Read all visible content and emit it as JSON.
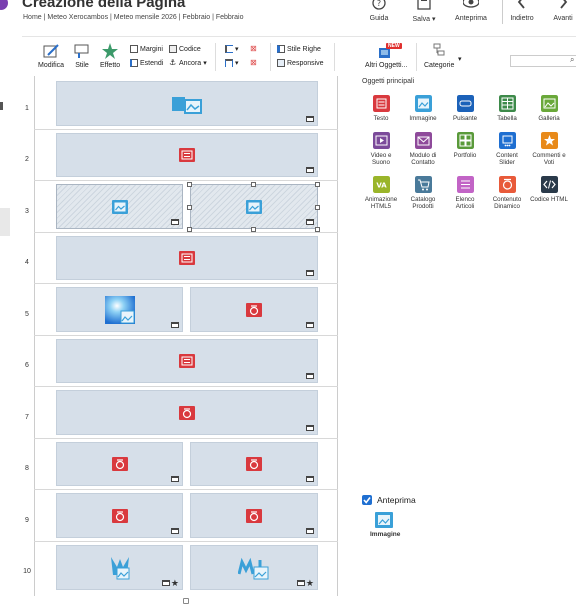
{
  "header": {
    "title": "Creazione della Pagina",
    "breadcrumb": "Home | Meteo Xerocambos | Meteo mensile 2026 | Febbraio | Febbraio",
    "buttons": {
      "guide": "Guida",
      "save": "Salva ▾",
      "preview": "Anteprima",
      "back": "Indietro",
      "forward": "Avanti"
    }
  },
  "toolbar": {
    "modify": "Modifica",
    "style": "Stile",
    "effect": "Effetto",
    "margins": "Margini",
    "code": "Codice",
    "extend": "Estendi",
    "anchor": "Ancora",
    "row_style": "Stile Righe",
    "responsive": "Responsive",
    "more_objects": "Altri Oggetti...",
    "categories": "Categorie",
    "new_badge": "NEW"
  },
  "rows": [
    "1",
    "2",
    "3",
    "4",
    "5",
    "6",
    "7",
    "8",
    "9",
    "10"
  ],
  "objects_panel": {
    "title": "Oggetti principali",
    "items": [
      {
        "label": "Testo",
        "icon": "text-icon",
        "color": "#d9393e"
      },
      {
        "label": "Immagine",
        "icon": "image-icon",
        "color": "#3aa0d8"
      },
      {
        "label": "Pulsante",
        "icon": "button-icon",
        "color": "#1c62b9"
      },
      {
        "label": "Tabella",
        "icon": "table-icon",
        "color": "#3d8a4a"
      },
      {
        "label": "Galleria",
        "icon": "gallery-icon",
        "color": "#6aa83a"
      },
      {
        "label": "Video e\nSuono",
        "icon": "video-icon",
        "color": "#7b4a9a"
      },
      {
        "label": "Modulo di\nContatto",
        "icon": "contact-form-icon",
        "color": "#8e4a9a"
      },
      {
        "label": "Portfolio",
        "icon": "portfolio-icon",
        "color": "#5a9a3a"
      },
      {
        "label": "Content\nSlider",
        "icon": "slider-icon",
        "color": "#1f6fd1"
      },
      {
        "label": "Commenti e\nVoti",
        "icon": "comments-icon",
        "color": "#e88a1a"
      },
      {
        "label": "Animazione\nHTML5",
        "icon": "animation-icon",
        "color": "#9ab52a"
      },
      {
        "label": "Catalogo\nProdotti",
        "icon": "catalog-icon",
        "color": "#4a7a9a"
      },
      {
        "label": "Elenco\nArticoli",
        "icon": "articles-icon",
        "color": "#c264c6"
      },
      {
        "label": "Contenuto\nDinamico",
        "icon": "dynamic-content-icon",
        "color": "#e85a3a"
      },
      {
        "label": "Codice HTML",
        "icon": "html-code-icon",
        "color": "#2a3a4a"
      }
    ]
  },
  "preview": {
    "label": "Anteprima",
    "caption": "Immagine",
    "checked": true
  }
}
